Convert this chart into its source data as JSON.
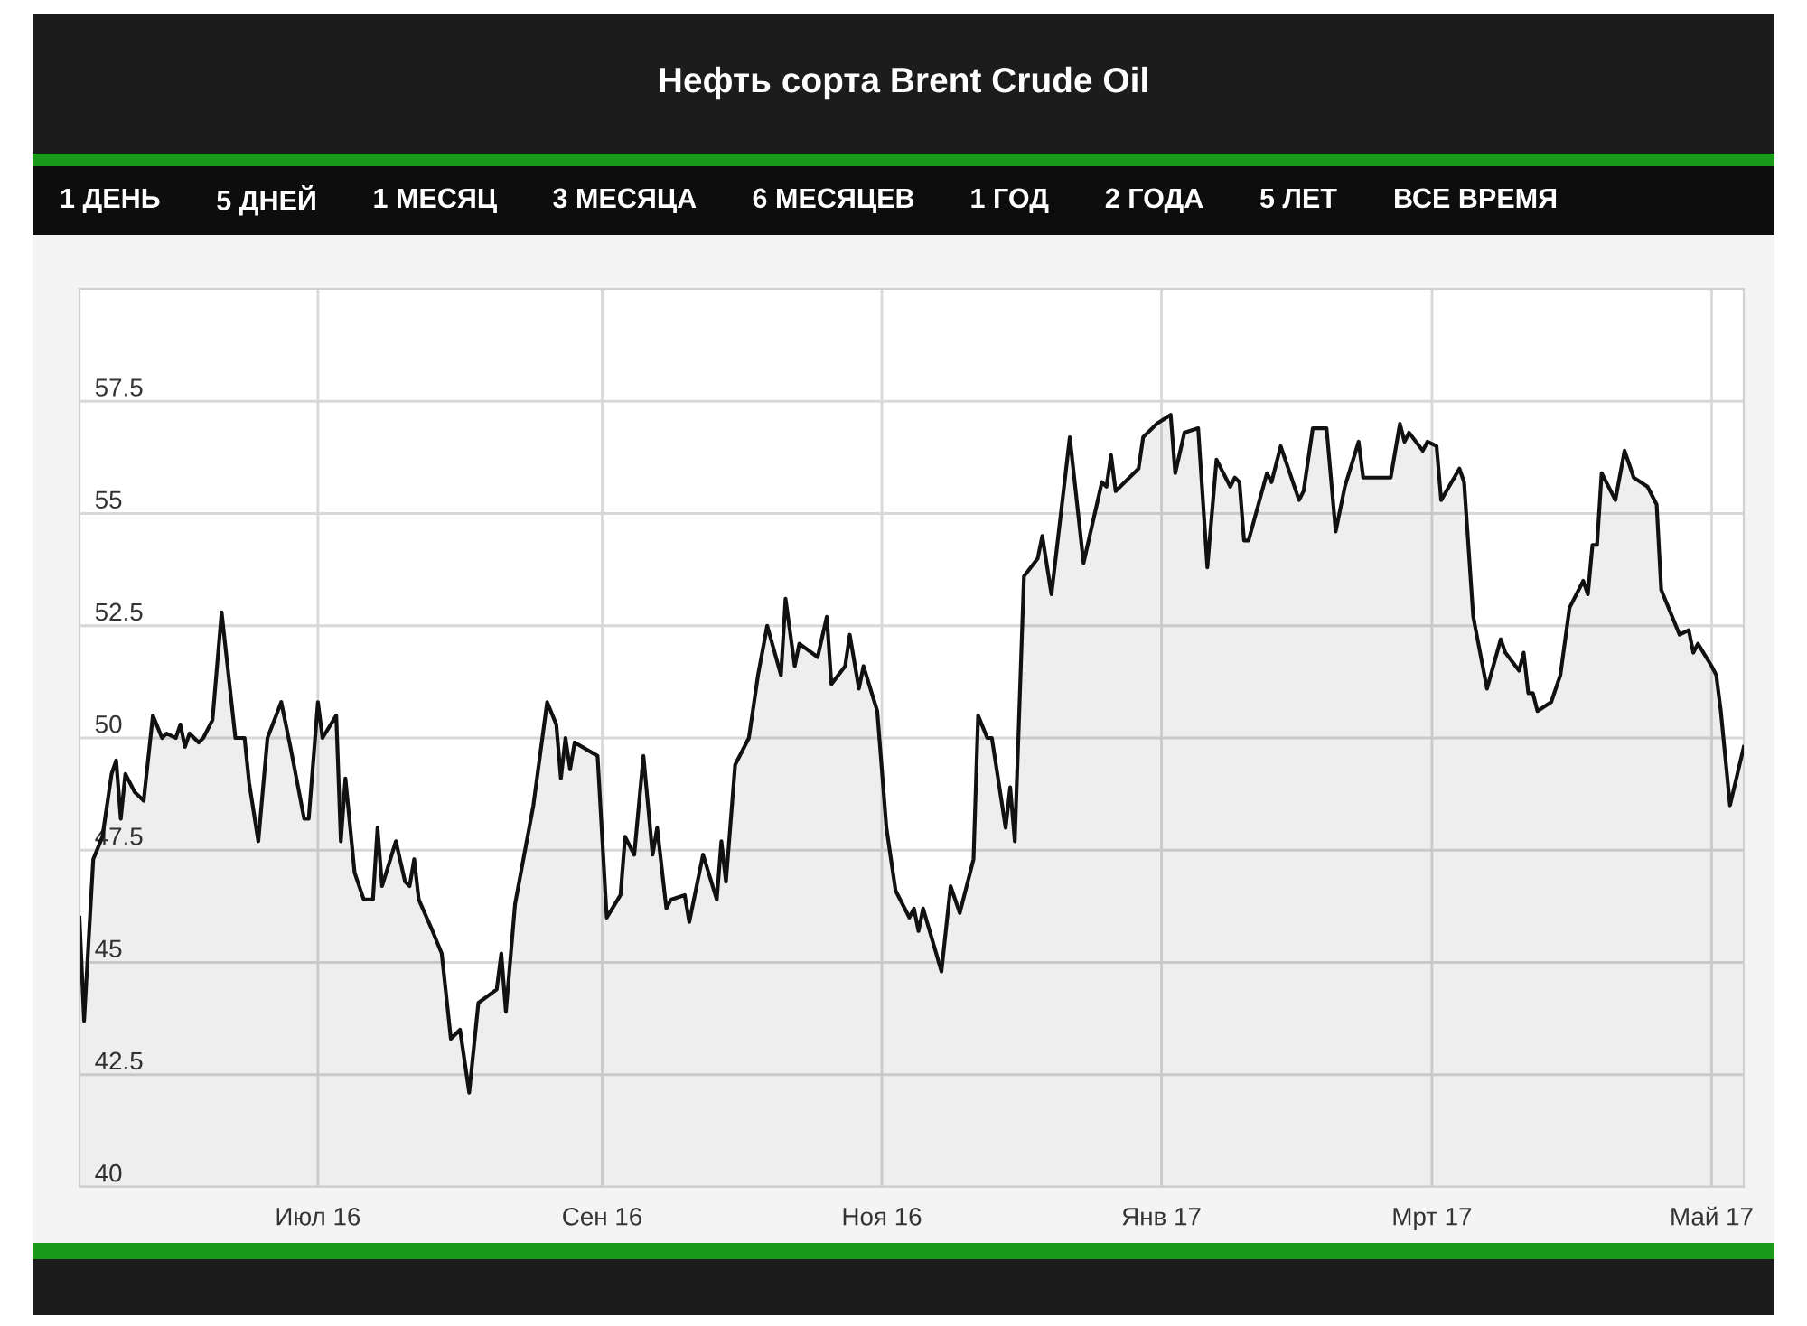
{
  "chart_data": {
    "type": "area",
    "title": "Нефть сорта Brent Crude Oil",
    "annotations": [
      "1 ДЕНЬ",
      "5 ДНЕЙ",
      "1 МЕСЯЦ",
      "3 МЕСЯЦА",
      "6 МЕСЯЦЕВ",
      "1 ГОД",
      "2 ГОДА",
      "5 ЛЕТ",
      "ВСЕ ВРЕМЯ"
    ],
    "color": "#111111",
    "x": [
      "2016-05-10",
      "2016-05-11",
      "2016-05-13",
      "2016-05-15",
      "2016-05-17",
      "2016-05-18",
      "2016-05-19",
      "2016-05-20",
      "2016-05-22",
      "2016-05-24",
      "2016-05-26",
      "2016-05-28",
      "2016-05-29",
      "2016-05-31",
      "2016-06-01",
      "2016-06-02",
      "2016-06-03",
      "2016-06-05",
      "2016-06-06",
      "2016-06-08",
      "2016-06-10",
      "2016-06-13",
      "2016-06-15",
      "2016-06-16",
      "2016-06-18",
      "2016-06-20",
      "2016-06-23",
      "2016-06-25",
      "2016-06-28",
      "2016-06-29",
      "2016-07-01",
      "2016-07-02",
      "2016-07-05",
      "2016-07-06",
      "2016-07-07",
      "2016-07-09",
      "2016-07-11",
      "2016-07-13",
      "2016-07-14",
      "2016-07-15",
      "2016-07-18",
      "2016-07-20",
      "2016-07-21",
      "2016-07-22",
      "2016-07-23",
      "2016-07-26",
      "2016-07-28",
      "2016-07-30",
      "2016-08-01",
      "2016-08-03",
      "2016-08-05",
      "2016-08-09",
      "2016-08-10",
      "2016-08-11",
      "2016-08-13",
      "2016-08-15",
      "2016-08-17",
      "2016-08-20",
      "2016-08-22",
      "2016-08-23",
      "2016-08-24",
      "2016-08-25",
      "2016-08-26",
      "2016-08-31",
      "2016-09-02",
      "2016-09-05",
      "2016-09-06",
      "2016-09-08",
      "2016-09-10",
      "2016-09-12",
      "2016-09-13",
      "2016-09-15",
      "2016-09-16",
      "2016-09-19",
      "2016-09-20",
      "2016-09-23",
      "2016-09-26",
      "2016-09-27",
      "2016-09-28",
      "2016-09-30",
      "2016-10-03",
      "2016-10-05",
      "2016-10-07",
      "2016-10-10",
      "2016-10-11",
      "2016-10-13",
      "2016-10-14",
      "2016-10-18",
      "2016-10-20",
      "2016-10-21",
      "2016-10-24",
      "2016-10-25",
      "2016-10-27",
      "2016-10-28",
      "2016-10-31",
      "2016-11-02",
      "2016-11-04",
      "2016-11-07",
      "2016-11-08",
      "2016-11-09",
      "2016-11-10",
      "2016-11-14",
      "2016-11-16",
      "2016-11-18",
      "2016-11-21",
      "2016-11-22",
      "2016-11-24",
      "2016-11-25",
      "2016-11-28",
      "2016-11-29",
      "2016-11-30",
      "2016-12-02",
      "2016-12-05",
      "2016-12-06",
      "2016-12-08",
      "2016-12-12",
      "2016-12-15",
      "2016-12-19",
      "2016-12-20",
      "2016-12-21",
      "2016-12-22",
      "2016-12-27",
      "2016-12-28",
      "2016-12-31",
      "2017-01-03",
      "2017-01-04",
      "2017-01-06",
      "2017-01-09",
      "2017-01-11",
      "2017-01-13",
      "2017-01-16",
      "2017-01-17",
      "2017-01-18",
      "2017-01-19",
      "2017-01-20",
      "2017-01-24",
      "2017-01-25",
      "2017-01-27",
      "2017-01-31",
      "2017-02-01",
      "2017-02-03",
      "2017-02-06",
      "2017-02-08",
      "2017-02-10",
      "2017-02-13",
      "2017-02-14",
      "2017-02-16",
      "2017-02-17",
      "2017-02-20",
      "2017-02-22",
      "2017-02-23",
      "2017-02-24",
      "2017-02-27",
      "2017-02-28",
      "2017-03-02",
      "2017-03-03",
      "2017-03-07",
      "2017-03-08",
      "2017-03-10",
      "2017-03-13",
      "2017-03-16",
      "2017-03-17",
      "2017-03-20",
      "2017-03-21",
      "2017-03-22",
      "2017-03-23",
      "2017-03-24",
      "2017-03-27",
      "2017-03-29",
      "2017-03-31",
      "2017-04-03",
      "2017-04-04",
      "2017-04-05",
      "2017-04-06",
      "2017-04-07",
      "2017-04-10",
      "2017-04-12",
      "2017-04-14",
      "2017-04-17",
      "2017-04-19",
      "2017-04-20",
      "2017-04-24",
      "2017-04-26",
      "2017-04-27",
      "2017-04-28",
      "2017-05-01",
      "2017-05-02",
      "2017-05-03",
      "2017-05-05",
      "2017-05-08"
    ],
    "values": [
      46.0,
      43.7,
      47.3,
      47.8,
      49.2,
      49.5,
      48.2,
      49.2,
      48.8,
      48.6,
      50.5,
      50.0,
      50.1,
      50.0,
      50.3,
      49.8,
      50.1,
      49.9,
      50.0,
      50.4,
      52.8,
      50.0,
      50.0,
      49.0,
      47.7,
      50.0,
      50.8,
      49.8,
      48.2,
      48.2,
      50.8,
      50.0,
      50.5,
      47.7,
      49.1,
      47.0,
      46.4,
      46.4,
      48.0,
      46.7,
      47.7,
      46.8,
      46.7,
      47.3,
      46.4,
      45.7,
      45.2,
      43.3,
      43.5,
      42.1,
      44.1,
      44.4,
      45.2,
      43.9,
      46.3,
      47.4,
      48.5,
      50.8,
      50.3,
      49.1,
      50.0,
      49.3,
      49.9,
      49.6,
      46.0,
      46.5,
      47.8,
      47.4,
      49.6,
      47.4,
      48.0,
      46.2,
      46.4,
      46.5,
      45.9,
      47.4,
      46.4,
      47.7,
      46.8,
      49.4,
      50.0,
      51.4,
      52.5,
      51.4,
      53.1,
      51.6,
      52.1,
      51.8,
      52.7,
      51.2,
      51.6,
      52.3,
      51.1,
      51.6,
      50.6,
      48.0,
      46.6,
      46.0,
      46.2,
      45.7,
      46.2,
      44.8,
      46.7,
      46.1,
      47.3,
      50.5,
      50.0,
      50.0,
      48.0,
      48.9,
      47.7,
      53.6,
      54.0,
      54.5,
      53.2,
      56.7,
      53.9,
      55.7,
      55.6,
      56.3,
      55.5,
      56.0,
      56.7,
      57.0,
      57.2,
      55.9,
      56.8,
      56.9,
      53.8,
      56.2,
      55.6,
      55.8,
      55.7,
      54.4,
      54.4,
      55.9,
      55.7,
      56.5,
      55.3,
      55.5,
      56.9,
      56.9,
      54.6,
      55.6,
      56.6,
      55.8,
      55.8,
      55.8,
      55.8,
      57.0,
      56.6,
      56.8,
      56.4,
      56.6,
      56.5,
      55.3,
      56.0,
      55.7,
      52.7,
      51.1,
      52.2,
      51.9,
      51.5,
      51.9,
      51.0,
      51.0,
      50.6,
      50.8,
      51.4,
      52.9,
      53.5,
      53.2,
      54.3,
      54.3,
      55.9,
      55.3,
      56.4,
      55.8,
      55.6,
      55.2,
      53.3,
      52.3,
      52.4,
      51.9,
      52.1,
      51.6,
      51.4,
      50.6,
      48.5,
      49.8
    ],
    "xlim": [
      "2016-05-10",
      "2017-05-08"
    ],
    "xticks": [
      {
        "value": "2016-07-01",
        "label": "Июл 16"
      },
      {
        "value": "2016-09-01",
        "label": "Сен 16"
      },
      {
        "value": "2016-11-01",
        "label": "Ноя 16"
      },
      {
        "value": "2017-01-01",
        "label": "Янв 17"
      },
      {
        "value": "2017-03-01",
        "label": "Мрт 17"
      },
      {
        "value": "2017-05-01",
        "label": "Май 17"
      }
    ],
    "ylim": [
      40,
      60
    ],
    "yticks": [
      40,
      42.5,
      45,
      47.5,
      50,
      52.5,
      55,
      57.5
    ],
    "grid": true
  }
}
